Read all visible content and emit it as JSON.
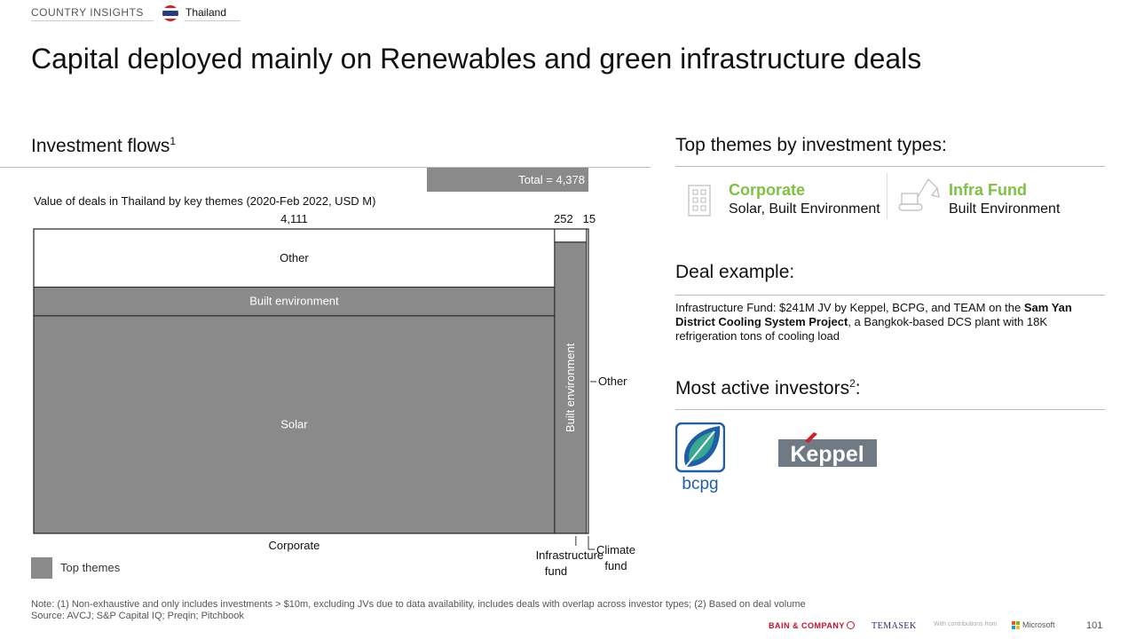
{
  "header": {
    "section": "COUNTRY INSIGHTS",
    "country": "Thailand"
  },
  "title": "Capital deployed mainly on Renewables and green infrastructure deals",
  "left_section": {
    "title": "Investment flows",
    "title_sup": "1",
    "total_label": "Total = 4,378",
    "legend_label": "Top themes"
  },
  "chart_data": {
    "type": "marimekko",
    "subtitle": "Value of deals in Thailand by key themes (2020-Feb 2022, USD M)",
    "total": 4378,
    "columns": [
      {
        "name": "Corporate",
        "total": 4111,
        "total_label": "4,111",
        "segments": [
          {
            "name": "Solar",
            "share": 0.715,
            "top_theme": true
          },
          {
            "name": "Built environment",
            "share": 0.094,
            "top_theme": true
          },
          {
            "name": "Other",
            "share": 0.191,
            "top_theme": false
          }
        ]
      },
      {
        "name": "Infrastructure fund",
        "total": 252,
        "total_label": "252",
        "segments": [
          {
            "name": "Built environment",
            "share": 0.957,
            "top_theme": true
          },
          {
            "name": "Other",
            "share": 0.043,
            "top_theme": false
          }
        ]
      },
      {
        "name": "Climate fund",
        "total": 15,
        "total_label": "15",
        "segments": [
          {
            "name": "Other",
            "share": 1.0,
            "top_theme": false
          }
        ]
      }
    ],
    "side_label_other": "Other",
    "colors": {
      "top_theme": "#8a8a8a",
      "other": "#ffffff",
      "stroke": "#222222"
    }
  },
  "right_section": {
    "themes_title": "Top themes by investment types:",
    "themes": [
      {
        "name": "Corporate",
        "desc": "Solar, Built Environment",
        "icon": "building-icon"
      },
      {
        "name": "Infra Fund",
        "desc": "Built Environment",
        "icon": "excavator-icon"
      }
    ],
    "deal_title": "Deal example:",
    "deal_text_pre": "Infrastructure Fund: $241M JV by Keppel, BCPG, and TEAM on the ",
    "deal_text_bold": "Sam Yan District Cooling System Project",
    "deal_text_post": ", a Bangkok-based DCS plant with 18K refrigeration tons of cooling load",
    "investors_title": "Most active investors",
    "investors_sup": "2",
    "investors_suffix": ":",
    "investors": [
      "bcpg",
      "Keppel"
    ]
  },
  "footer": {
    "note": "Note: (1) Non-exhaustive and only includes investments > $10m, excluding JVs due to data availability, includes deals with overlap across investor types; (2) Based on deal volume",
    "source": "Source: AVCJ; S&P Capital IQ; Preqin; Pitchbook",
    "bain": "BAIN & COMPANY",
    "temasek": "TEMASEK",
    "contrib": "With contributions from",
    "microsoft": "Microsoft",
    "page": "101"
  },
  "accent_color": "#7dc242"
}
